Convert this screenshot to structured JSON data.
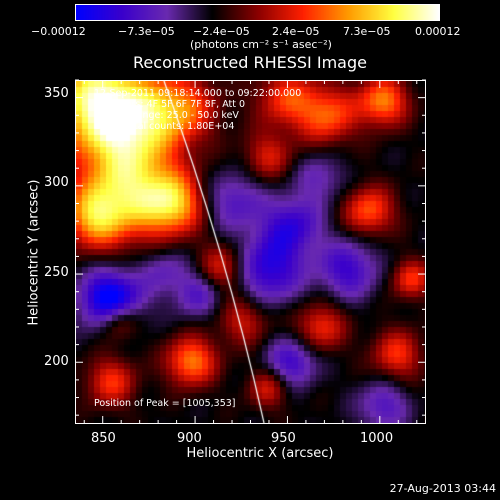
{
  "chart_data": {
    "type": "heatmap",
    "title": "Reconstructed RHESSI Image",
    "xlabel": "Heliocentric X (arcsec)",
    "ylabel": "Heliocentric Y (arcsec)",
    "xlim": [
      835,
      1025
    ],
    "ylim": [
      165,
      360
    ],
    "xticks": [
      "850",
      "900",
      "950",
      "1000"
    ],
    "yticks": [
      "200",
      "250",
      "300",
      "350"
    ],
    "colorbar": {
      "unit_label": "(photons cm⁻² s⁻¹ asec⁻²)",
      "ticks": [
        "−0.00012",
        "−7.3e−05",
        "−2.4e−05",
        "2.4e−05",
        "7.3e−05",
        "0.00012"
      ],
      "range": [
        -0.00012,
        0.00012
      ],
      "colors": [
        "#0000ff",
        "#3a00cc",
        "#6a2ab0",
        "#000000",
        "#8a0000",
        "#ff2000",
        "#ff9a00",
        "#ffff40",
        "#ffffff"
      ]
    },
    "annotations": [
      "12-Sep-2011 09:18:14.000 to 09:22:00.000",
      "Detectors: 4F 5F 6F 7F 8F, Att 0",
      "Energy Range: 25.0 - 50.0 keV",
      "Clean    Total counts: 1.80E+04"
    ],
    "peak_label": "Position of Peak = [1005,353]",
    "timestamp": "27-Aug-2013 03:44"
  }
}
